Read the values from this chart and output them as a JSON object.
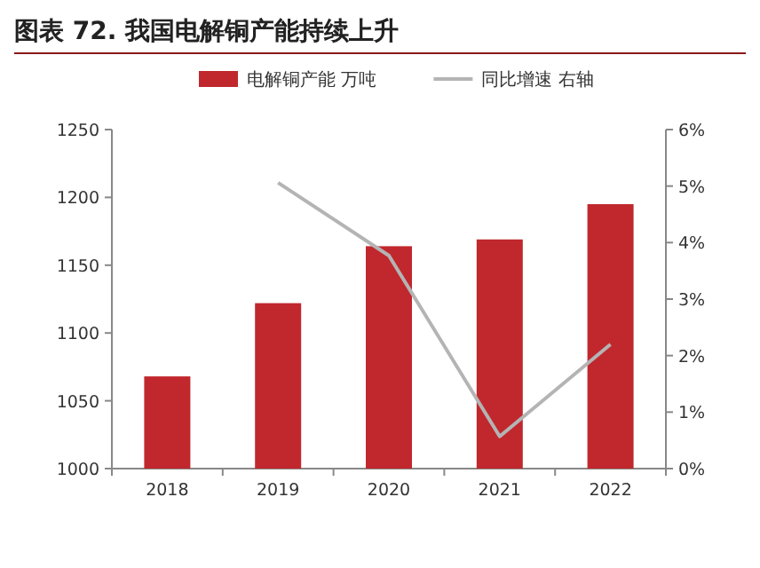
{
  "chart_data": {
    "type": "bar",
    "title": "图表 72. 我国电解铜产能持续上升",
    "categories": [
      "2018",
      "2019",
      "2020",
      "2021",
      "2022"
    ],
    "series": [
      {
        "name": "电解铜产能 万吨",
        "color": "#c0282d",
        "values": [
          1068,
          1122,
          1164,
          1169,
          1195
        ]
      },
      {
        "name": "同比增速 右轴",
        "color": "#b4b4b4",
        "type": "line",
        "axis": "y2",
        "values": [
          null,
          5.06,
          3.77,
          0.57,
          2.2
        ]
      }
    ],
    "ylim": [
      1000,
      1250
    ],
    "yticks": [
      1000,
      1050,
      1100,
      1150,
      1200,
      1250
    ],
    "y2lim": [
      0,
      6
    ],
    "y2ticks": [
      {
        "value": 0,
        "label": "0%"
      },
      {
        "value": 1,
        "label": "1%"
      },
      {
        "value": 2,
        "label": "2%"
      },
      {
        "value": 3,
        "label": "3%"
      },
      {
        "value": 4,
        "label": "4%"
      },
      {
        "value": 5,
        "label": "5%"
      },
      {
        "value": 6,
        "label": "6%"
      }
    ],
    "legend": "top",
    "grid": false
  }
}
